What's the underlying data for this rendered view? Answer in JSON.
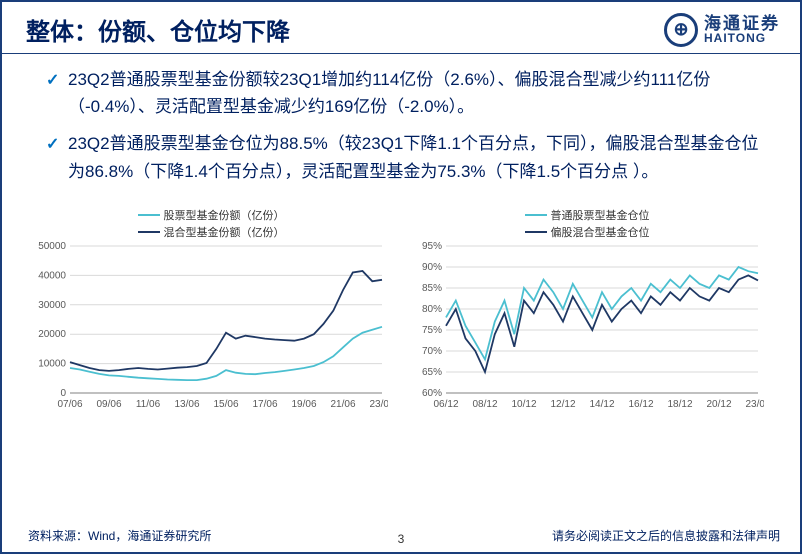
{
  "header": {
    "title": "整体：份额、仓位均下降",
    "logo_cn": "海通证券",
    "logo_en": "HAITONG"
  },
  "bullets": [
    "23Q2普通股票型基金份额较23Q1增加约114亿份（2.6%）、偏股混合型减少约111亿份（-0.4%）、灵活配置型基金减少约169亿份（-2.0%）。",
    "23Q2普通股票型基金仓位为88.5%（较23Q1下降1.1个百分点，下同），偏股混合型基金仓位为86.8%（下降1.4个百分点），灵活配置型基金为75.3%（下降1.5个百分点 ）。"
  ],
  "chart_left": {
    "type": "line",
    "legend": [
      {
        "label": "股票型基金份额（亿份）",
        "color": "#4bbfd0"
      },
      {
        "label": "混合型基金份额（亿份）",
        "color": "#1f3864"
      }
    ],
    "x_labels": [
      "07/06",
      "09/06",
      "11/06",
      "13/06",
      "15/06",
      "17/06",
      "19/06",
      "21/06",
      "23/06"
    ],
    "y_ticks": [
      0,
      10000,
      20000,
      30000,
      40000,
      50000
    ],
    "ylim": [
      0,
      50000
    ],
    "series": [
      {
        "name": "equity_share",
        "color": "#4bbfd0",
        "points": [
          [
            0,
            8500
          ],
          [
            1,
            8000
          ],
          [
            2,
            7200
          ],
          [
            3,
            6500
          ],
          [
            4,
            6000
          ],
          [
            5,
            5800
          ],
          [
            6,
            5500
          ],
          [
            7,
            5200
          ],
          [
            8,
            5000
          ],
          [
            9,
            4800
          ],
          [
            10,
            4600
          ],
          [
            11,
            4500
          ],
          [
            12,
            4400
          ],
          [
            13,
            4400
          ],
          [
            14,
            4850
          ],
          [
            15,
            5800
          ],
          [
            16,
            7800
          ],
          [
            17,
            6900
          ],
          [
            18,
            6500
          ],
          [
            19,
            6400
          ],
          [
            20,
            6800
          ],
          [
            21,
            7100
          ],
          [
            22,
            7500
          ],
          [
            23,
            8000
          ],
          [
            24,
            8500
          ],
          [
            25,
            9200
          ],
          [
            26,
            10500
          ],
          [
            27,
            12500
          ],
          [
            28,
            15500
          ],
          [
            29,
            18500
          ],
          [
            30,
            20500
          ],
          [
            31,
            21500
          ],
          [
            32,
            22500
          ]
        ]
      },
      {
        "name": "hybrid_share",
        "color": "#1f3864",
        "points": [
          [
            0,
            10500
          ],
          [
            1,
            9500
          ],
          [
            2,
            8500
          ],
          [
            3,
            7800
          ],
          [
            4,
            7500
          ],
          [
            5,
            7800
          ],
          [
            6,
            8200
          ],
          [
            7,
            8500
          ],
          [
            8,
            8200
          ],
          [
            9,
            8000
          ],
          [
            10,
            8300
          ],
          [
            11,
            8600
          ],
          [
            12,
            8800
          ],
          [
            13,
            9200
          ],
          [
            14,
            10200
          ],
          [
            15,
            15000
          ],
          [
            16,
            20500
          ],
          [
            17,
            18500
          ],
          [
            18,
            19500
          ],
          [
            19,
            19000
          ],
          [
            20,
            18500
          ],
          [
            21,
            18200
          ],
          [
            22,
            18000
          ],
          [
            23,
            17800
          ],
          [
            24,
            18500
          ],
          [
            25,
            20000
          ],
          [
            26,
            23500
          ],
          [
            27,
            28000
          ],
          [
            28,
            35000
          ],
          [
            29,
            41000
          ],
          [
            30,
            41500
          ],
          [
            31,
            38000
          ],
          [
            32,
            38500
          ]
        ]
      }
    ],
    "grid_color": "#d9d9d9",
    "background_color": "#ffffff"
  },
  "chart_right": {
    "type": "line",
    "legend": [
      {
        "label": "普通股票型基金仓位",
        "color": "#4bbfd0"
      },
      {
        "label": "偏股混合型基金仓位",
        "color": "#1f3864"
      }
    ],
    "x_labels": [
      "06/12",
      "08/12",
      "10/12",
      "12/12",
      "14/12",
      "16/12",
      "18/12",
      "20/12",
      "23/06"
    ],
    "y_ticks": [
      60,
      65,
      70,
      75,
      80,
      85,
      90,
      95
    ],
    "y_tick_labels": [
      "60%",
      "65%",
      "70%",
      "75%",
      "80%",
      "85%",
      "90%",
      "95%"
    ],
    "ylim": [
      60,
      95
    ],
    "series": [
      {
        "name": "equity_pos",
        "color": "#4bbfd0",
        "points": [
          [
            0,
            78
          ],
          [
            1,
            82
          ],
          [
            2,
            76
          ],
          [
            3,
            72
          ],
          [
            4,
            68
          ],
          [
            5,
            77
          ],
          [
            6,
            82
          ],
          [
            7,
            74
          ],
          [
            8,
            85
          ],
          [
            9,
            82
          ],
          [
            10,
            87
          ],
          [
            11,
            84
          ],
          [
            12,
            80
          ],
          [
            13,
            86
          ],
          [
            14,
            82
          ],
          [
            15,
            78
          ],
          [
            16,
            84
          ],
          [
            17,
            80
          ],
          [
            18,
            83
          ],
          [
            19,
            85
          ],
          [
            20,
            82
          ],
          [
            21,
            86
          ],
          [
            22,
            84
          ],
          [
            23,
            87
          ],
          [
            24,
            85
          ],
          [
            25,
            88
          ],
          [
            26,
            86
          ],
          [
            27,
            85
          ],
          [
            28,
            88
          ],
          [
            29,
            87
          ],
          [
            30,
            90
          ],
          [
            31,
            89
          ],
          [
            32,
            88.5
          ]
        ]
      },
      {
        "name": "hybrid_pos",
        "color": "#1f3864",
        "points": [
          [
            0,
            76
          ],
          [
            1,
            80
          ],
          [
            2,
            73
          ],
          [
            3,
            70
          ],
          [
            4,
            65
          ],
          [
            5,
            74
          ],
          [
            6,
            79
          ],
          [
            7,
            71
          ],
          [
            8,
            82
          ],
          [
            9,
            79
          ],
          [
            10,
            84
          ],
          [
            11,
            81
          ],
          [
            12,
            77
          ],
          [
            13,
            83
          ],
          [
            14,
            79
          ],
          [
            15,
            75
          ],
          [
            16,
            81
          ],
          [
            17,
            77
          ],
          [
            18,
            80
          ],
          [
            19,
            82
          ],
          [
            20,
            79
          ],
          [
            21,
            83
          ],
          [
            22,
            81
          ],
          [
            23,
            84
          ],
          [
            24,
            82
          ],
          [
            25,
            85
          ],
          [
            26,
            83
          ],
          [
            27,
            82
          ],
          [
            28,
            85
          ],
          [
            29,
            84
          ],
          [
            30,
            87
          ],
          [
            31,
            88
          ],
          [
            32,
            86.8
          ]
        ]
      }
    ],
    "grid_color": "#d9d9d9",
    "background_color": "#ffffff"
  },
  "footer": {
    "source": "资料来源：Wind，海通证券研究所",
    "page": "3",
    "disclaimer": "请务必阅读正文之后的信息披露和法律声明"
  }
}
